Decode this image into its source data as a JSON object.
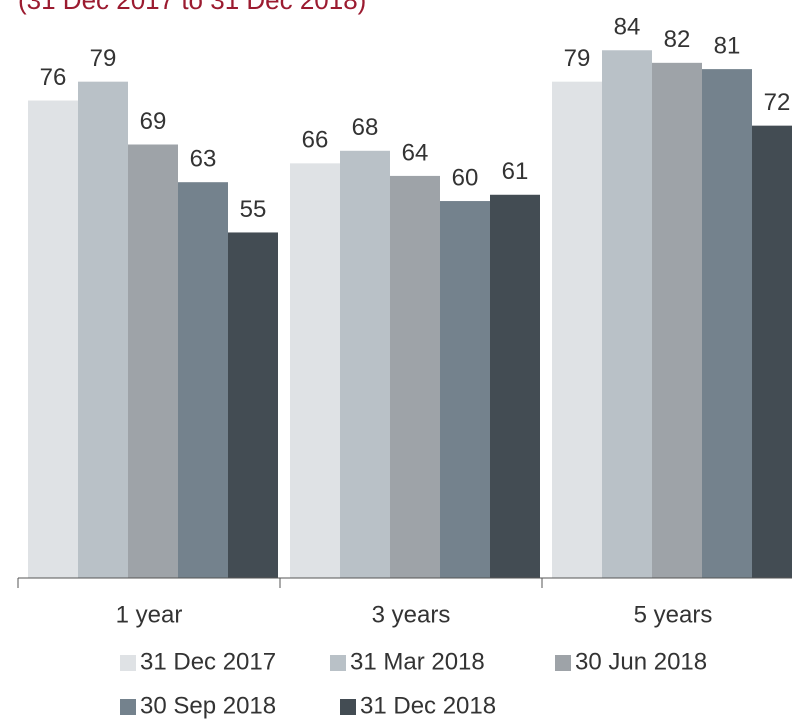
{
  "chart_data": {
    "type": "bar",
    "subtitle": "(31 Dec 2017 to 31 Dec 2018)",
    "categories": [
      "1 year",
      "3 years",
      "5 years"
    ],
    "series": [
      {
        "name": "31 Dec 2017",
        "color": "#dfe2e5",
        "values": [
          76,
          66,
          79
        ]
      },
      {
        "name": "31 Mar 2018",
        "color": "#b9c1c7",
        "values": [
          79,
          68,
          84
        ]
      },
      {
        "name": "30 Jun 2018",
        "color": "#9ea3a8",
        "values": [
          69,
          64,
          82
        ]
      },
      {
        "name": "30 Sep 2018",
        "color": "#74828d",
        "values": [
          63,
          60,
          81
        ]
      },
      {
        "name": "31 Dec 2018",
        "color": "#434c53",
        "values": [
          55,
          61,
          72
        ]
      }
    ],
    "ylim": [
      0,
      92
    ]
  }
}
